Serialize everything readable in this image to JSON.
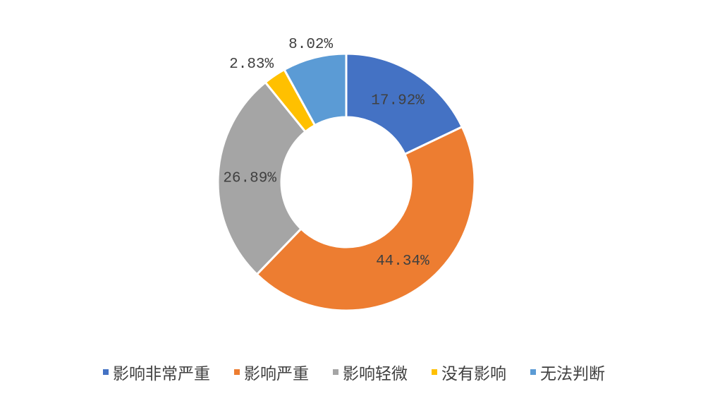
{
  "chart_data": {
    "type": "donut",
    "categories": [
      "影响非常严重",
      "影响严重",
      "影响轻微",
      "没有影响",
      "无法判断"
    ],
    "values": [
      17.92,
      44.34,
      26.89,
      2.83,
      8.02
    ],
    "value_labels": [
      "17.92%",
      "44.34%",
      "26.89%",
      "2.83%",
      "8.02%"
    ],
    "colors": [
      "#4472c4",
      "#ed7d31",
      "#a5a5a5",
      "#ffc000",
      "#5b9bd5"
    ],
    "legend": "bottom"
  }
}
